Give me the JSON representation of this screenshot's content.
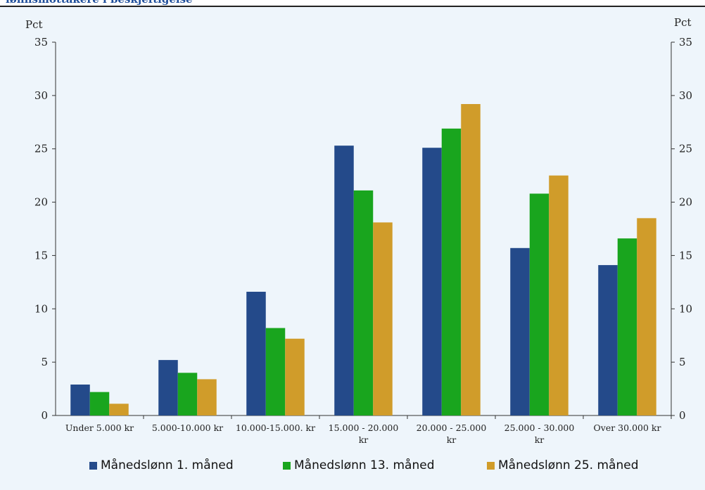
{
  "page": {
    "title": "lønnsmottakere i beskjeftigelse"
  },
  "chart_data": {
    "type": "bar",
    "categories": [
      [
        "Under 5.000 kr"
      ],
      [
        "5.000-10.000 kr"
      ],
      [
        "10.000-15.000. kr"
      ],
      [
        "15.000 - 20.000",
        "kr"
      ],
      [
        "20.000 - 25.000",
        "kr"
      ],
      [
        "25.000 - 30.000",
        "kr"
      ],
      [
        "Over 30.000 kr"
      ]
    ],
    "series": [
      {
        "name": "Månedslønn 1. måned",
        "color": "#244a8a",
        "values": [
          2.9,
          5.2,
          11.6,
          25.3,
          25.1,
          15.7,
          14.1
        ]
      },
      {
        "name": "Månedslønn 13. måned",
        "color": "#19a51e",
        "values": [
          2.2,
          4.0,
          8.2,
          21.1,
          26.9,
          20.8,
          16.6
        ]
      },
      {
        "name": "Månedslønn 25. måned",
        "color": "#d09c2a",
        "values": [
          1.1,
          3.4,
          7.2,
          18.1,
          29.2,
          22.5,
          18.5
        ]
      }
    ],
    "ylabel_left": "Pct",
    "ylabel_right": "Pct",
    "ylim": [
      0,
      35
    ],
    "yticks": [
      0,
      5,
      10,
      15,
      20,
      25,
      30,
      35
    ],
    "grid": false,
    "legend_position": "bottom"
  }
}
